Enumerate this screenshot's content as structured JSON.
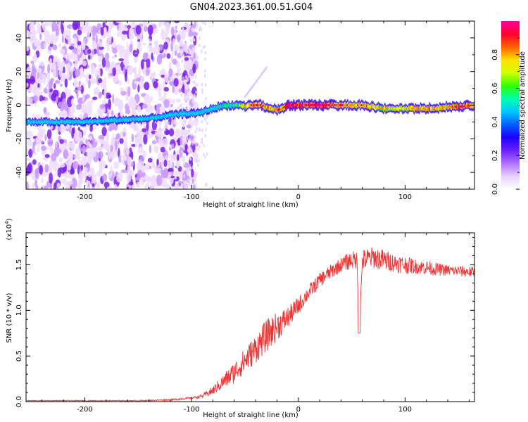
{
  "title": "GN04.2023.361.00.51.G04",
  "chart_data": [
    {
      "type": "heatmap",
      "xlabel": "Height of straight line (km)",
      "ylabel": "Frequency (Hz)",
      "xlim": [
        -255,
        165
      ],
      "ylim": [
        -50,
        50
      ],
      "xticks": [
        -200,
        -100,
        0,
        100
      ],
      "xticklabels": [
        "-200",
        "-100",
        "0",
        "100"
      ],
      "yticks": [
        -40,
        -20,
        0,
        20,
        40
      ],
      "yticklabels": [
        "-40",
        "-20",
        "0",
        "20",
        "40"
      ],
      "colorbar": {
        "label": "Normalized spectral amplitude",
        "range": [
          0,
          1
        ],
        "ticks": [
          0.0,
          0.2,
          0.4,
          0.6,
          0.8
        ],
        "ticklabels": [
          "0.0",
          "0.2",
          "0.4",
          "0.6",
          "0.8"
        ],
        "colormap": [
          "#ffffff",
          "#e4c8ff",
          "#a040ff",
          "#3000ff",
          "#0080ff",
          "#00e0ff",
          "#00ff70",
          "#a0ff00",
          "#ffff00",
          "#ff9000",
          "#ff0030",
          "#ff00a0"
        ]
      },
      "trace": {
        "x": [
          -255,
          -230,
          -200,
          -170,
          -140,
          -120,
          -105,
          -95,
          -85,
          -75,
          -65,
          -55,
          -50,
          -45,
          -40,
          -35,
          -30,
          -25,
          -20,
          -15,
          -10,
          -5,
          0,
          10,
          20,
          30,
          40,
          50,
          60,
          70,
          80,
          90,
          100,
          110,
          120,
          130,
          140,
          150,
          165
        ],
        "y": [
          -10,
          -10,
          -10,
          -9,
          -8,
          -6,
          -5,
          -5,
          -3,
          -1,
          0,
          0,
          -1,
          0,
          0,
          0,
          -1,
          -2,
          -3,
          -2,
          0,
          0,
          0,
          0,
          0,
          0,
          0,
          0,
          0,
          -1,
          -2,
          -2,
          -2,
          -2,
          -2,
          -2,
          -1,
          -1,
          0
        ],
        "amplitude": [
          0.35,
          0.35,
          0.4,
          0.4,
          0.4,
          0.45,
          0.5,
          0.5,
          0.55,
          0.6,
          0.65,
          0.7,
          0.85,
          0.9,
          0.95,
          0.95,
          0.9,
          0.8,
          0.9,
          0.95,
          1.0,
          1.0,
          1.0,
          1.0,
          1.0,
          1.0,
          0.9,
          0.85,
          0.9,
          0.85,
          0.8,
          0.75,
          0.8,
          0.9,
          0.9,
          0.85,
          0.9,
          0.95,
          0.95
        ]
      },
      "noise_region_x": [
        -255,
        -95
      ]
    },
    {
      "type": "line",
      "xlabel": "Height of straight line (km)",
      "ylabel": "SNR (10 * v/v)",
      "multiplier": "(x10⁴)",
      "multiplier_base": "(x10",
      "multiplier_exp": "4",
      "multiplier_close": ")",
      "xlim": [
        -255,
        165
      ],
      "ylim": [
        0,
        1.85
      ],
      "xticks": [
        -200,
        -100,
        0,
        100
      ],
      "xticklabels": [
        "-200",
        "-100",
        "0",
        "100"
      ],
      "yticks": [
        0.0,
        0.5,
        1.0,
        1.5
      ],
      "yticklabels": [
        "0.0",
        "0.5",
        "1.0",
        "1.5"
      ],
      "series": [
        {
          "color": "#ee3333",
          "x": [
            -255,
            -200,
            -150,
            -120,
            -100,
            -90,
            -80,
            -70,
            -60,
            -50,
            -40,
            -30,
            -20,
            -10,
            0,
            10,
            20,
            30,
            40,
            50,
            55,
            57,
            60,
            70,
            80,
            90,
            100,
            110,
            120,
            130,
            140,
            150,
            165
          ],
          "y": [
            0.01,
            0.01,
            0.01,
            0.02,
            0.04,
            0.06,
            0.12,
            0.22,
            0.32,
            0.45,
            0.58,
            0.72,
            0.82,
            0.92,
            1.05,
            1.2,
            1.33,
            1.42,
            1.5,
            1.55,
            1.55,
            0.75,
            1.55,
            1.58,
            1.55,
            1.52,
            1.5,
            1.48,
            1.47,
            1.45,
            1.44,
            1.43,
            1.42
          ],
          "noise_amplitude": [
            0.005,
            0.005,
            0.005,
            0.008,
            0.01,
            0.02,
            0.05,
            0.08,
            0.12,
            0.14,
            0.16,
            0.18,
            0.16,
            0.12,
            0.1,
            0.08,
            0.08,
            0.08,
            0.08,
            0.1,
            0.1,
            0.0,
            0.12,
            0.12,
            0.12,
            0.1,
            0.1,
            0.08,
            0.08,
            0.07,
            0.06,
            0.06,
            0.06
          ]
        }
      ]
    }
  ]
}
